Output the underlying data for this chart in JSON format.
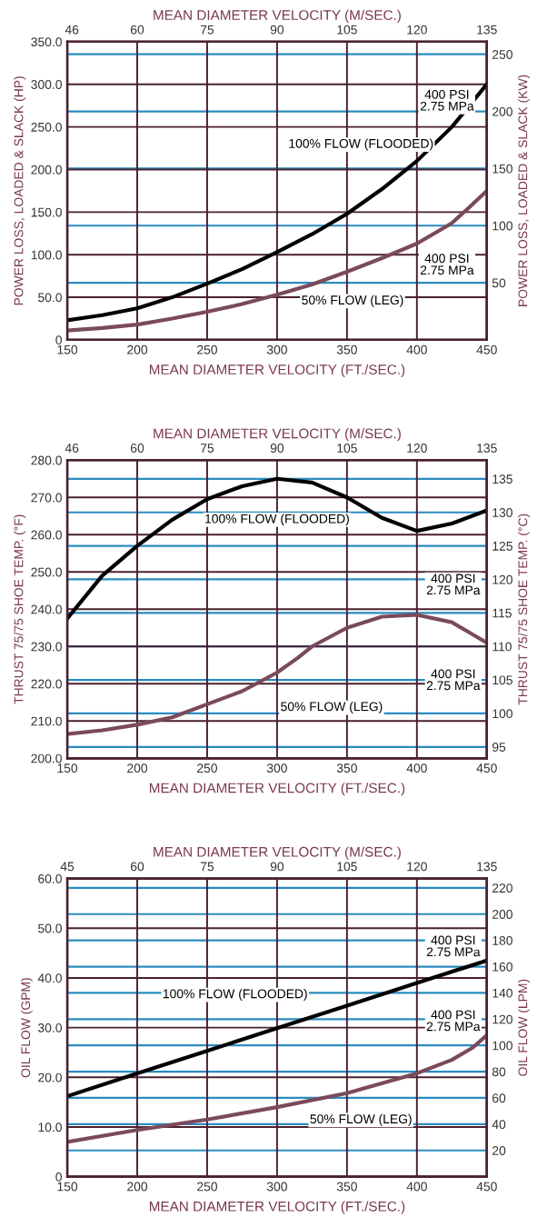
{
  "chart_data": [
    {
      "type": "line",
      "xlabel": "MEAN DIAMETER VELOCITY (FT./SEC.)",
      "x2label": "MEAN DIAMETER VELOCITY (M/SEC.)",
      "ylabel": "POWER LOSS, LOADED & SLACK (HP)",
      "y2label": "POWER LOSS, LOADED & SLACK (KW)",
      "xlim": [
        150,
        450
      ],
      "xticks": [
        150,
        200,
        250,
        300,
        350,
        400,
        450
      ],
      "x2lim": [
        45,
        135
      ],
      "x2ticks": [
        46,
        60,
        75,
        90,
        105,
        120,
        135
      ],
      "ylim": [
        0,
        350
      ],
      "yticks": [
        0,
        {
          "value": 50,
          "label": "50.0"
        },
        {
          "value": 100,
          "label": "100.0"
        },
        {
          "value": 150,
          "label": "150.0"
        },
        {
          "value": 200,
          "label": "200.0"
        },
        {
          "value": 250,
          "label": "250.0"
        },
        {
          "value": 300,
          "label": "300.0"
        },
        {
          "value": 350,
          "label": "350.0"
        }
      ],
      "y2lim": [
        0,
        261
      ],
      "y2ticks": [
        50,
        100,
        150,
        200,
        250
      ],
      "grid": true,
      "series": [
        {
          "name": "100% FLOW (FLOODED)",
          "color": "#000000",
          "x": [
            150,
            175,
            200,
            225,
            250,
            275,
            300,
            325,
            350,
            375,
            400,
            425,
            450
          ],
          "values": [
            23,
            29,
            37,
            50,
            66,
            83,
            103,
            124,
            148,
            177,
            210,
            250,
            300
          ]
        },
        {
          "name": "50% FLOW (LEG)",
          "color": "#7b4a5a",
          "x": [
            150,
            175,
            200,
            225,
            250,
            275,
            300,
            325,
            350,
            375,
            400,
            425,
            437,
            450
          ],
          "values": [
            11,
            14,
            18,
            25,
            33,
            42,
            53,
            65,
            80,
            96,
            113,
            137,
            155,
            175
          ]
        }
      ],
      "annotations": [
        "400 PSI\n2.75 MPa",
        "400 PSI\n2.75 MPa"
      ]
    },
    {
      "type": "line",
      "xlabel": "MEAN DIAMETER VELOCITY (FT./SEC.)",
      "x2label": "MEAN DIAMETER VELOCITY (M/SEC.)",
      "ylabel": "THRUST 75/75 SHOE TEMP. (°F)",
      "y2label": "THRUST 75/75 SHOE TEMP. (°C)",
      "xlim": [
        150,
        450
      ],
      "xticks": [
        150,
        200,
        250,
        300,
        350,
        400,
        450
      ],
      "x2lim": [
        45,
        135
      ],
      "x2ticks": [
        46,
        60,
        75,
        90,
        105,
        120,
        135
      ],
      "ylim": [
        200,
        280
      ],
      "yticks": [
        {
          "value": 200,
          "label": "200.0"
        },
        {
          "value": 210,
          "label": "210.0"
        },
        {
          "value": 220,
          "label": "220.0"
        },
        {
          "value": 230,
          "label": "230.0"
        },
        {
          "value": 240,
          "label": "240.0"
        },
        {
          "value": 250,
          "label": "250.0"
        },
        {
          "value": 260,
          "label": "260.0"
        },
        {
          "value": 270,
          "label": "270.0"
        },
        {
          "value": 280,
          "label": "280.0"
        }
      ],
      "y2lim": [
        93.3,
        137.8
      ],
      "y2ticks": [
        95,
        100,
        105,
        110,
        115,
        120,
        125,
        130,
        135
      ],
      "grid": true,
      "series": [
        {
          "name": "100% FLOW (FLOODED)",
          "color": "#000000",
          "x": [
            150,
            175,
            200,
            225,
            250,
            275,
            300,
            325,
            350,
            375,
            400,
            425,
            450
          ],
          "values": [
            237.5,
            249,
            257,
            264,
            269.5,
            273,
            275,
            274,
            270,
            264.5,
            261,
            263,
            266.5
          ]
        },
        {
          "name": "50% FLOW (LEG)",
          "color": "#7b4a5a",
          "x": [
            150,
            175,
            200,
            225,
            250,
            275,
            300,
            315,
            325,
            350,
            375,
            400,
            425,
            450
          ],
          "values": [
            206.5,
            207.5,
            209,
            211,
            214.5,
            218,
            223,
            227,
            230,
            235,
            238,
            238.5,
            236.5,
            231
          ]
        }
      ],
      "annotations": [
        "400 PSI\n2.75 MPa",
        "400 PSI\n2.75 MPa"
      ]
    },
    {
      "type": "line",
      "xlabel": "MEAN DIAMETER VELOCITY (FT./SEC.)",
      "x2label": "MEAN DIAMETER VELOCITY (M/SEC.)",
      "ylabel": "OIL FLOW (GPM)",
      "y2label": "OIL FLOW (LPM)",
      "xlim": [
        150,
        450
      ],
      "xticks": [
        150,
        200,
        250,
        300,
        350,
        400,
        450
      ],
      "x2lim": [
        45,
        135
      ],
      "x2ticks": [
        45,
        60,
        75,
        90,
        105,
        120,
        135
      ],
      "ylim": [
        0,
        60
      ],
      "yticks": [
        0,
        {
          "value": 10,
          "label": "10.0"
        },
        {
          "value": 20,
          "label": "20.0"
        },
        {
          "value": 30,
          "label": "30.0"
        },
        {
          "value": 40,
          "label": "40.0"
        },
        {
          "value": 50,
          "label": "50.0"
        },
        {
          "value": 60,
          "label": "60.0"
        }
      ],
      "y2lim": [
        0,
        227.1
      ],
      "y2ticks": [
        20,
        40,
        60,
        80,
        100,
        120,
        140,
        160,
        180,
        200,
        220
      ],
      "grid": true,
      "series": [
        {
          "name": "100% FLOW (FLOODED)",
          "color": "#000000",
          "x": [
            150,
            200,
            250,
            300,
            350,
            400,
            450
          ],
          "values": [
            16.2,
            20.8,
            25.3,
            29.9,
            34.4,
            39,
            43.5
          ]
        },
        {
          "name": "50% FLOW (LEG)",
          "color": "#7b4a5a",
          "x": [
            150,
            200,
            250,
            300,
            350,
            400,
            425,
            440,
            450
          ],
          "values": [
            7,
            9.4,
            11.5,
            14,
            16.8,
            20.8,
            23.5,
            26,
            28.5
          ]
        }
      ],
      "annotations": [
        "400 PSI\n2.75 MPa",
        "400 PSI\n2.75 MPa"
      ]
    }
  ]
}
